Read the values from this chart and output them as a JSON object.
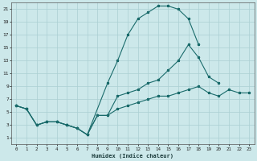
{
  "xlabel": "Humidex (Indice chaleur)",
  "xlim": [
    -0.5,
    23.5
  ],
  "ylim": [
    0,
    22
  ],
  "xticks": [
    0,
    1,
    2,
    3,
    4,
    5,
    6,
    7,
    8,
    9,
    10,
    11,
    12,
    13,
    14,
    15,
    16,
    17,
    18,
    19,
    20,
    21,
    22,
    23
  ],
  "yticks": [
    1,
    3,
    5,
    7,
    9,
    11,
    13,
    15,
    17,
    19,
    21
  ],
  "bg_color": "#cce8ea",
  "grid_color": "#aacfd2",
  "line_color": "#1a6b6b",
  "line1_x": [
    0,
    1,
    2,
    3,
    4,
    5,
    6,
    7,
    9,
    10,
    11,
    12,
    13,
    14,
    15,
    16,
    17,
    18
  ],
  "line1_y": [
    6,
    5.5,
    3,
    3.5,
    3.5,
    3,
    2.5,
    1.5,
    9.5,
    13,
    17,
    19.5,
    20.5,
    21.5,
    21.5,
    21,
    19.5,
    15.5
  ],
  "line2_x": [
    0,
    1,
    2,
    3,
    4,
    5,
    6,
    7,
    8,
    9,
    10,
    11,
    12,
    13,
    14,
    15,
    16,
    17,
    18,
    19,
    20
  ],
  "line2_y": [
    6,
    5.5,
    3,
    3.5,
    3.5,
    3,
    2.5,
    1.5,
    4.5,
    4.5,
    7.5,
    8,
    8.5,
    9.5,
    10,
    11.5,
    13,
    15.5,
    13.5,
    10.5,
    9.5
  ],
  "line3_x": [
    0,
    1,
    2,
    3,
    4,
    5,
    6,
    7,
    8,
    9,
    10,
    11,
    12,
    13,
    14,
    15,
    16,
    17,
    18,
    19,
    20,
    21,
    22,
    23
  ],
  "line3_y": [
    6,
    5.5,
    3,
    3.5,
    3.5,
    3,
    2.5,
    1.5,
    4.5,
    4.5,
    5.5,
    6,
    6.5,
    7,
    7.5,
    7.5,
    8,
    8.5,
    9,
    8,
    7.5,
    8.5,
    8,
    8
  ]
}
